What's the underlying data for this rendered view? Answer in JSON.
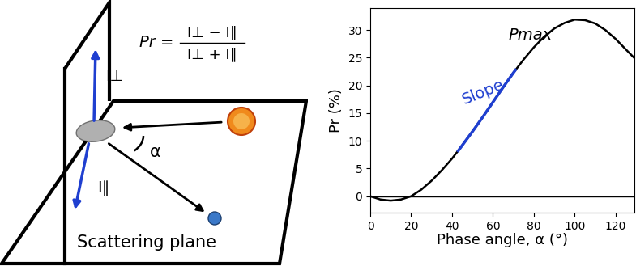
{
  "diagram": {
    "formula": {
      "lhs": "Pr =",
      "numerator": "I⊥ − I∥",
      "denominator": "I⊥ + I∥"
    },
    "labels": {
      "perpendicular": "I⊥",
      "parallel": "I∥",
      "angle": "α",
      "plane": "Scattering plane"
    }
  },
  "chart_data": {
    "type": "line",
    "x_label": "Phase angle, α (°)",
    "y_label": "Pr (%)",
    "xlim": [
      0,
      129
    ],
    "ylim": [
      -3,
      34
    ],
    "xticks": [
      0,
      20,
      40,
      60,
      80,
      100,
      120
    ],
    "yticks": [
      0,
      5,
      10,
      15,
      20,
      25,
      30
    ],
    "reference_line": 0,
    "series": [
      {
        "color": "#000000",
        "x": [
          0,
          5,
          10,
          15,
          20,
          25,
          30,
          35,
          40,
          45,
          50,
          55,
          60,
          65,
          70,
          75,
          80,
          85,
          90,
          95,
          100,
          105,
          110,
          115,
          120,
          125,
          129
        ],
        "values": [
          0,
          -0.6,
          -0.8,
          -0.6,
          0,
          1.2,
          2.8,
          4.7,
          6.8,
          9.2,
          11.7,
          14.3,
          17.0,
          19.7,
          22.3,
          24.7,
          26.9,
          28.8,
          30.3,
          31.3,
          31.9,
          31.8,
          31.2,
          30.0,
          28.4,
          26.5,
          25.0
        ]
      },
      {
        "name": "Slope",
        "color": "#1f3fd0",
        "x": [
          43,
          45,
          50,
          55,
          60,
          65,
          70,
          71
        ],
        "values": [
          8.2,
          9.2,
          11.7,
          14.3,
          17.0,
          19.7,
          22.3,
          22.8
        ]
      }
    ],
    "annotations": [
      {
        "text": "Pmax",
        "x": 100,
        "y": 31.9
      }
    ]
  }
}
